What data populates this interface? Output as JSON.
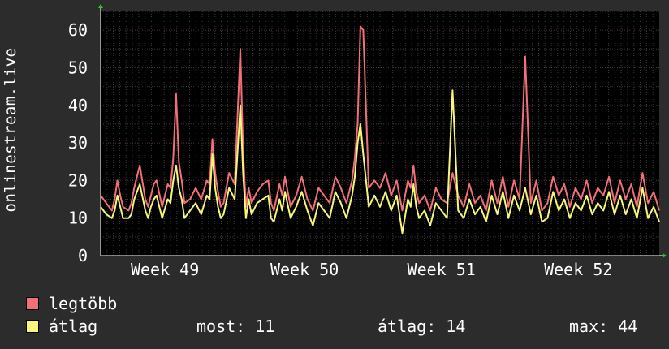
{
  "ylabel": "onlinestream.live",
  "legend": [
    {
      "label": "legtöbb",
      "color": "#f0707a"
    },
    {
      "label": "átlag",
      "color": "#f6f67a"
    }
  ],
  "stats": {
    "now": "most: 11",
    "avg": "átlag: 14",
    "max": "max: 44"
  },
  "chart_data": {
    "type": "line",
    "grid": true,
    "ylim": [
      0,
      65
    ],
    "xlim": [
      0,
      100
    ],
    "yticks": [
      0,
      10,
      20,
      30,
      40,
      50,
      60
    ],
    "xticks": [
      {
        "label": "Week 49",
        "x": 11.5
      },
      {
        "label": "Week 50",
        "x": 36.5
      },
      {
        "label": "Week 51",
        "x": 61
      },
      {
        "label": "Week 52",
        "x": 85.5
      }
    ],
    "series": [
      {
        "name": "legtöbb",
        "color": "#f0707a",
        "x": [
          0,
          1,
          2,
          2.5,
          3,
          3.5,
          4,
          5,
          5.5,
          6,
          6.5,
          7,
          8,
          8.5,
          9,
          9.5,
          10,
          11,
          12,
          12.5,
          13,
          13.5,
          14,
          14.5,
          15,
          16,
          17,
          18,
          19,
          19.5,
          20,
          20.5,
          21,
          21.5,
          22,
          23,
          24,
          25,
          25.5,
          26,
          26.5,
          27,
          28,
          29,
          30,
          30.5,
          31,
          32,
          32.5,
          33,
          34,
          35,
          36,
          37,
          38,
          39,
          40,
          41,
          42,
          43,
          44,
          45,
          45.5,
          46,
          46.5,
          47,
          48,
          49,
          50,
          51,
          52,
          53,
          54,
          55,
          55.5,
          56,
          56.5,
          57,
          58,
          59,
          60,
          61,
          62,
          63,
          64,
          65,
          66,
          67,
          68,
          69,
          70,
          71,
          72,
          73,
          74,
          75,
          76,
          77,
          78,
          79,
          80,
          81,
          82,
          83,
          84,
          85,
          86,
          87,
          88,
          89,
          90,
          91,
          92,
          93,
          94,
          95,
          96,
          97,
          98,
          99,
          100
        ],
        "y": [
          16,
          14,
          12,
          15,
          20,
          16,
          13,
          12,
          14,
          18,
          21,
          24,
          15,
          13,
          16,
          19,
          20,
          13,
          19,
          18,
          26,
          43,
          25,
          20,
          14,
          15,
          18,
          15,
          20,
          19,
          31,
          22,
          17,
          13,
          14,
          22,
          19,
          55,
          28,
          13,
          18,
          14,
          17,
          19,
          20,
          14,
          12,
          19,
          16,
          21,
          13,
          16,
          21,
          15,
          12,
          18,
          16,
          14,
          21,
          18,
          14,
          20,
          26,
          35,
          61,
          60,
          18,
          20,
          18,
          22,
          16,
          20,
          12,
          20,
          18,
          24,
          17,
          14,
          16,
          12,
          18,
          15,
          14,
          22,
          16,
          13,
          19,
          14,
          16,
          12,
          20,
          14,
          21,
          13,
          20,
          15,
          53,
          14,
          20,
          12,
          14,
          21,
          16,
          19,
          13,
          18,
          15,
          20,
          14,
          18,
          16,
          21,
          14,
          20,
          15,
          19,
          13,
          22,
          14,
          17,
          12
        ]
      },
      {
        "name": "átlag",
        "color": "#f6f67a",
        "x": [
          0,
          1,
          2,
          2.5,
          3,
          3.5,
          4,
          5,
          5.5,
          6,
          6.5,
          7,
          8,
          8.5,
          9,
          9.5,
          10,
          11,
          12,
          12.5,
          13,
          13.5,
          14,
          14.5,
          15,
          16,
          17,
          18,
          19,
          19.5,
          20,
          20.5,
          21,
          21.5,
          22,
          23,
          24,
          25,
          25.5,
          26,
          26.5,
          27,
          28,
          29,
          30,
          30.5,
          31,
          32,
          32.5,
          33,
          34,
          35,
          36,
          37,
          38,
          39,
          40,
          41,
          42,
          43,
          44,
          45,
          45.5,
          46,
          46.5,
          47,
          48,
          49,
          50,
          51,
          52,
          53,
          54,
          55,
          55.5,
          56,
          56.5,
          57,
          58,
          59,
          60,
          61,
          62,
          63,
          64,
          65,
          66,
          67,
          68,
          69,
          70,
          71,
          72,
          73,
          74,
          75,
          76,
          77,
          78,
          79,
          80,
          81,
          82,
          83,
          84,
          85,
          86,
          87,
          88,
          89,
          90,
          91,
          92,
          93,
          94,
          95,
          96,
          97,
          98,
          99,
          100
        ],
        "y": [
          13,
          11,
          10,
          12,
          16,
          13,
          10,
          10,
          11,
          15,
          17,
          19,
          12,
          10,
          13,
          15,
          16,
          10,
          15,
          14,
          20,
          24,
          18,
          15,
          10,
          12,
          14,
          11,
          16,
          15,
          27,
          18,
          13,
          10,
          11,
          18,
          15,
          40,
          22,
          10,
          15,
          11,
          14,
          15,
          16,
          10,
          9,
          15,
          12,
          17,
          10,
          13,
          17,
          12,
          8,
          14,
          12,
          10,
          17,
          14,
          10,
          16,
          21,
          30,
          35,
          27,
          13,
          16,
          13,
          17,
          12,
          16,
          6,
          15,
          13,
          19,
          13,
          10,
          12,
          8,
          14,
          12,
          10,
          44,
          12,
          10,
          15,
          11,
          13,
          9,
          16,
          11,
          17,
          10,
          16,
          12,
          18,
          11,
          16,
          9,
          10,
          17,
          12,
          15,
          10,
          14,
          12,
          16,
          11,
          14,
          12,
          17,
          11,
          16,
          11,
          15,
          10,
          18,
          10,
          13,
          9
        ]
      }
    ]
  }
}
